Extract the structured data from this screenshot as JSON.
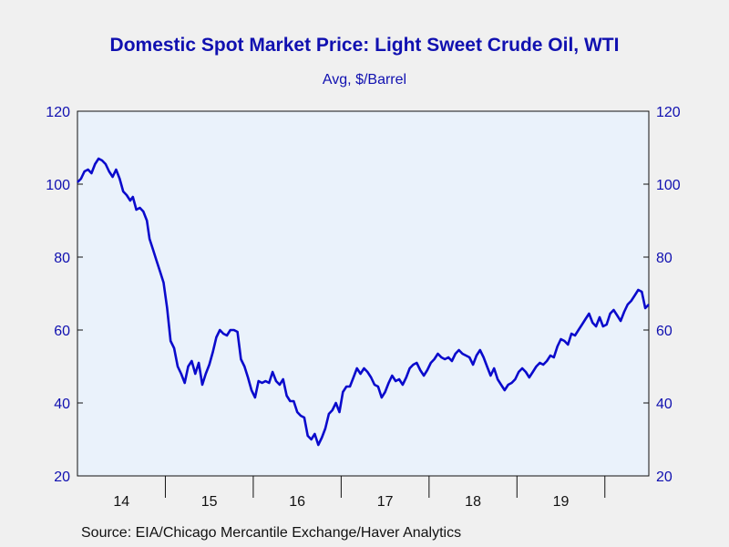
{
  "title": "Domestic Spot Market Price: Light Sweet Crude Oil, WTI",
  "subtitle": "Avg, $/Barrel",
  "source": "Source:  EIA/Chicago Mercantile Exchange/Haver Analytics",
  "colors": {
    "line": "#0a0acc",
    "text": "#1010b0",
    "plot_bg": "#eaf2fb",
    "page_bg": "#f0f0f0"
  },
  "chart_data": {
    "type": "line",
    "title": "Domestic Spot Market Price: Light Sweet Crude Oil, WTI",
    "subtitle": "Avg, $/Barrel",
    "xlabel": "",
    "ylabel": "",
    "ylim": [
      20,
      120
    ],
    "yticks": [
      20,
      40,
      60,
      80,
      100,
      120
    ],
    "xlim": [
      2014.0,
      2020.5
    ],
    "xticks": [
      {
        "year": 2014,
        "label": "14"
      },
      {
        "year": 2015,
        "label": "15"
      },
      {
        "year": 2016,
        "label": "16"
      },
      {
        "year": 2017,
        "label": "17"
      },
      {
        "year": 2018,
        "label": "18"
      },
      {
        "year": 2019,
        "label": "19"
      }
    ],
    "grid": false,
    "legend": "none",
    "series": [
      {
        "frequency": "weekly",
        "points": [
          [
            2014.0,
            100.5
          ],
          [
            2014.04,
            101.5
          ],
          [
            2014.08,
            103.5
          ],
          [
            2014.12,
            104.0
          ],
          [
            2014.16,
            103.0
          ],
          [
            2014.2,
            105.5
          ],
          [
            2014.24,
            107.0
          ],
          [
            2014.28,
            106.5
          ],
          [
            2014.32,
            105.5
          ],
          [
            2014.36,
            103.5
          ],
          [
            2014.4,
            102.0
          ],
          [
            2014.44,
            104.0
          ],
          [
            2014.48,
            101.5
          ],
          [
            2014.52,
            98.0
          ],
          [
            2014.56,
            97.0
          ],
          [
            2014.6,
            95.5
          ],
          [
            2014.63,
            96.5
          ],
          [
            2014.67,
            93.0
          ],
          [
            2014.71,
            93.5
          ],
          [
            2014.75,
            92.5
          ],
          [
            2014.79,
            90.0
          ],
          [
            2014.82,
            85.0
          ],
          [
            2014.86,
            82.0
          ],
          [
            2014.9,
            79.0
          ],
          [
            2014.94,
            76.0
          ],
          [
            2014.98,
            73.0
          ],
          [
            2015.02,
            66.0
          ],
          [
            2015.06,
            57.0
          ],
          [
            2015.1,
            55.0
          ],
          [
            2015.14,
            50.0
          ],
          [
            2015.18,
            48.0
          ],
          [
            2015.22,
            45.5
          ],
          [
            2015.26,
            50.0
          ],
          [
            2015.3,
            51.5
          ],
          [
            2015.34,
            48.0
          ],
          [
            2015.38,
            51.0
          ],
          [
            2015.42,
            45.0
          ],
          [
            2015.46,
            48.0
          ],
          [
            2015.5,
            50.5
          ],
          [
            2015.54,
            54.0
          ],
          [
            2015.58,
            58.0
          ],
          [
            2015.62,
            60.0
          ],
          [
            2015.66,
            59.0
          ],
          [
            2015.7,
            58.5
          ],
          [
            2015.74,
            60.0
          ],
          [
            2015.78,
            60.0
          ],
          [
            2015.82,
            59.5
          ],
          [
            2015.86,
            52.0
          ],
          [
            2015.9,
            50.0
          ],
          [
            2015.94,
            47.0
          ],
          [
            2015.98,
            43.5
          ],
          [
            2016.02,
            41.5
          ],
          [
            2016.06,
            46.0
          ],
          [
            2016.1,
            45.5
          ],
          [
            2016.14,
            46.0
          ],
          [
            2016.18,
            45.5
          ],
          [
            2016.22,
            48.5
          ],
          [
            2016.26,
            46.0
          ],
          [
            2016.3,
            45.0
          ],
          [
            2016.34,
            46.5
          ],
          [
            2016.38,
            42.0
          ],
          [
            2016.42,
            40.5
          ],
          [
            2016.46,
            40.5
          ],
          [
            2016.5,
            37.5
          ],
          [
            2016.54,
            36.5
          ],
          [
            2016.58,
            36.0
          ],
          [
            2016.62,
            31.0
          ],
          [
            2016.66,
            30.0
          ],
          [
            2016.7,
            31.5
          ],
          [
            2016.74,
            28.5
          ],
          [
            2016.78,
            30.5
          ],
          [
            2016.82,
            33.0
          ],
          [
            2016.86,
            37.0
          ],
          [
            2016.9,
            38.0
          ],
          [
            2016.94,
            40.0
          ],
          [
            2016.98,
            37.5
          ],
          [
            2017.02,
            43.0
          ],
          [
            2017.06,
            44.5
          ],
          [
            2017.1,
            44.5
          ],
          [
            2017.14,
            47.0
          ],
          [
            2017.18,
            49.5
          ],
          [
            2017.22,
            48.0
          ],
          [
            2017.26,
            49.5
          ],
          [
            2017.3,
            48.5
          ],
          [
            2017.34,
            47.0
          ],
          [
            2017.38,
            45.0
          ],
          [
            2017.42,
            44.5
          ],
          [
            2017.46,
            41.5
          ],
          [
            2017.5,
            43.0
          ],
          [
            2017.54,
            45.5
          ],
          [
            2017.58,
            47.5
          ],
          [
            2017.62,
            46.0
          ],
          [
            2017.66,
            46.5
          ],
          [
            2017.7,
            45.0
          ],
          [
            2017.74,
            47.0
          ],
          [
            2017.78,
            49.5
          ],
          [
            2017.82,
            50.5
          ],
          [
            2017.86,
            51.0
          ],
          [
            2017.9,
            49.0
          ],
          [
            2017.94,
            47.5
          ],
          [
            2017.98,
            49.0
          ],
          [
            2018.02,
            51.0
          ],
          [
            2018.06,
            52.0
          ],
          [
            2018.1,
            53.5
          ],
          [
            2018.14,
            52.5
          ],
          [
            2018.18,
            52.0
          ],
          [
            2018.22,
            52.5
          ],
          [
            2018.26,
            51.5
          ],
          [
            2018.3,
            53.5
          ],
          [
            2018.34,
            54.5
          ],
          [
            2018.38,
            53.5
          ],
          [
            2018.42,
            53.0
          ],
          [
            2018.46,
            52.5
          ],
          [
            2018.5,
            50.5
          ],
          [
            2018.54,
            53.0
          ],
          [
            2018.58,
            54.5
          ],
          [
            2018.62,
            52.5
          ],
          [
            2018.66,
            50.0
          ],
          [
            2018.7,
            47.5
          ],
          [
            2018.74,
            49.5
          ],
          [
            2018.78,
            46.5
          ],
          [
            2018.82,
            45.0
          ],
          [
            2018.86,
            43.5
          ],
          [
            2018.9,
            45.0
          ],
          [
            2018.94,
            45.5
          ],
          [
            2018.98,
            46.5
          ],
          [
            2019.02,
            48.5
          ],
          [
            2019.06,
            49.5
          ],
          [
            2019.1,
            48.5
          ],
          [
            2019.14,
            47.0
          ],
          [
            2019.18,
            48.5
          ],
          [
            2019.22,
            50.0
          ],
          [
            2019.26,
            51.0
          ],
          [
            2019.3,
            50.5
          ],
          [
            2019.34,
            51.5
          ],
          [
            2019.38,
            53.0
          ],
          [
            2019.42,
            52.5
          ],
          [
            2019.46,
            55.5
          ],
          [
            2019.5,
            57.5
          ],
          [
            2019.54,
            57.0
          ],
          [
            2019.58,
            56.0
          ],
          [
            2019.62,
            59.0
          ],
          [
            2019.66,
            58.5
          ],
          [
            2019.7,
            60.0
          ],
          [
            2019.74,
            61.5
          ],
          [
            2019.78,
            63.0
          ],
          [
            2019.82,
            64.5
          ],
          [
            2019.86,
            62.0
          ],
          [
            2019.9,
            61.0
          ],
          [
            2019.94,
            63.5
          ],
          [
            2019.98,
            61.0
          ],
          [
            2020.02,
            61.5
          ],
          [
            2020.06,
            64.5
          ],
          [
            2020.1,
            65.5
          ],
          [
            2020.14,
            64.0
          ],
          [
            2020.18,
            62.5
          ],
          [
            2020.22,
            65.0
          ],
          [
            2020.26,
            67.0
          ],
          [
            2020.3,
            68.0
          ],
          [
            2020.34,
            69.5
          ],
          [
            2020.38,
            71.0
          ],
          [
            2020.42,
            70.5
          ],
          [
            2020.46,
            66.0
          ],
          [
            2020.5,
            67.0
          ]
        ]
      }
    ]
  }
}
